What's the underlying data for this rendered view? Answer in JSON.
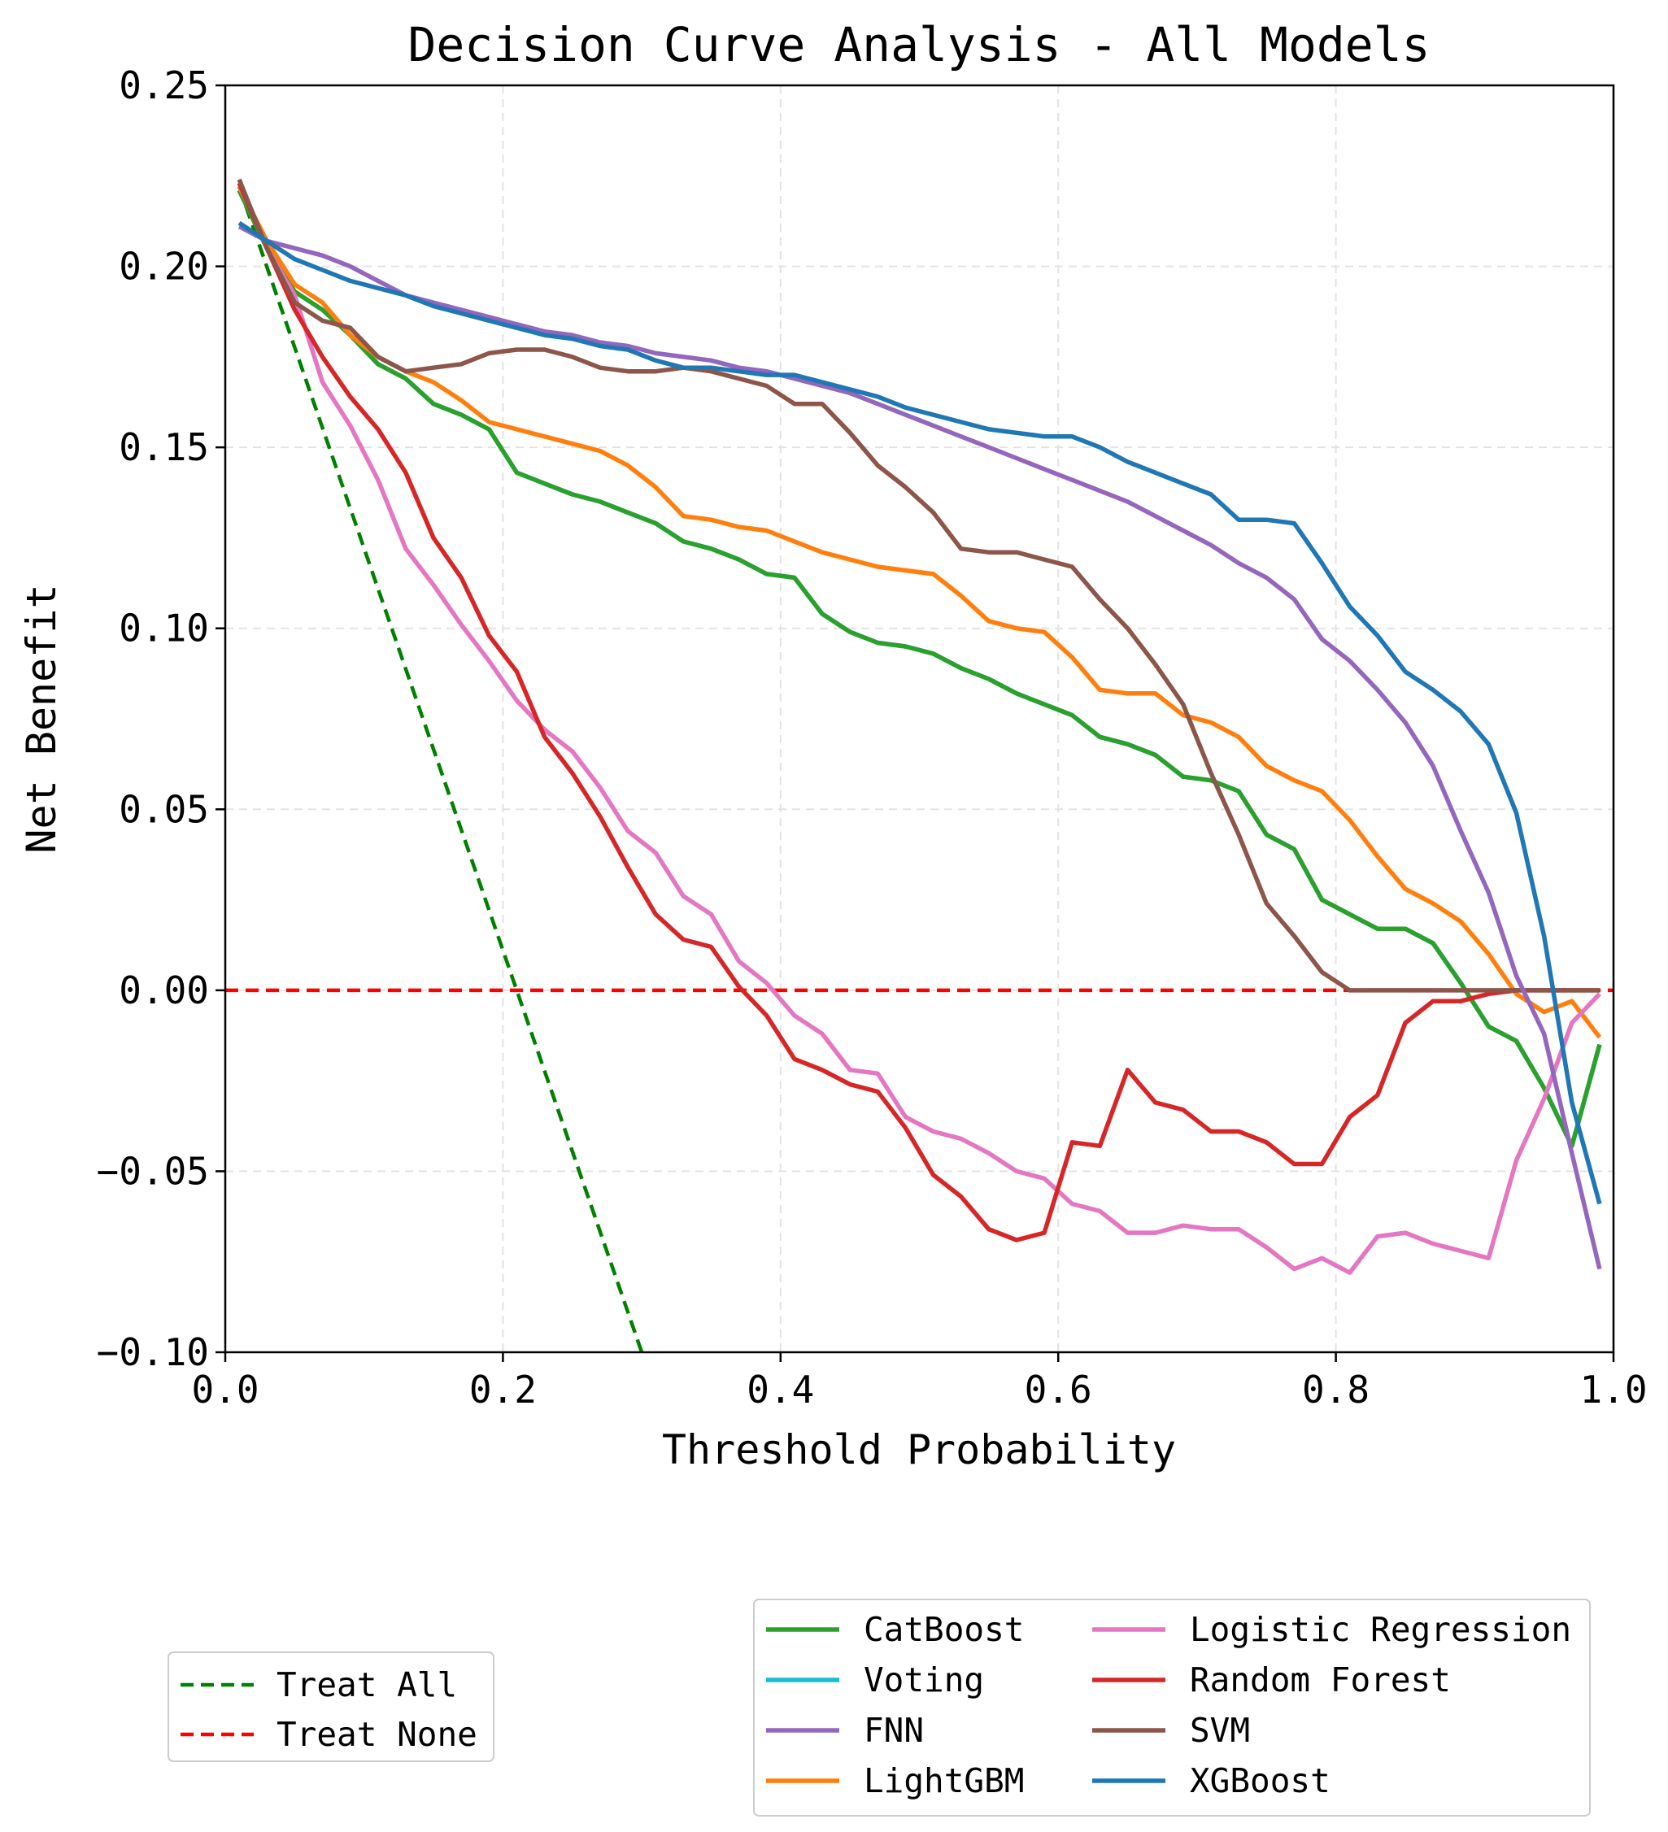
{
  "chart_data": {
    "type": "line",
    "title": "Decision Curve Analysis - All Models",
    "xlabel": "Threshold Probability",
    "ylabel": "Net Benefit",
    "xlim": [
      0.0,
      1.0
    ],
    "ylim": [
      -0.1,
      0.25
    ],
    "x_ticks": [
      "0.0",
      "0.2",
      "0.4",
      "0.6",
      "0.8",
      "1.0"
    ],
    "y_ticks": [
      "0.25",
      "0.20",
      "0.15",
      "0.10",
      "0.05",
      "0.00",
      "−0.05",
      "−0.10"
    ],
    "x_tick_values": [
      0.0,
      0.2,
      0.4,
      0.6,
      0.8,
      1.0
    ],
    "y_tick_values": [
      0.25,
      0.2,
      0.15,
      0.1,
      0.05,
      0.0,
      -0.05,
      -0.1
    ],
    "grid": true,
    "legend_reference": {
      "placement": "bottom-left",
      "entries": [
        "Treat All",
        "Treat None"
      ]
    },
    "legend_models": {
      "placement": "bottom-right",
      "columns": 2
    },
    "x": [
      0.01,
      0.03,
      0.05,
      0.07,
      0.09,
      0.11,
      0.13,
      0.15,
      0.17,
      0.19,
      0.21,
      0.23,
      0.25,
      0.27,
      0.29,
      0.31,
      0.33,
      0.35,
      0.37,
      0.39,
      0.41,
      0.43,
      0.45,
      0.47,
      0.49,
      0.51,
      0.53,
      0.55,
      0.57,
      0.59,
      0.61,
      0.63,
      0.65,
      0.67,
      0.69,
      0.71,
      0.73,
      0.75,
      0.77,
      0.79,
      0.81,
      0.83,
      0.85,
      0.87,
      0.89,
      0.91,
      0.93,
      0.95,
      0.97,
      0.99
    ],
    "series": [
      {
        "name": "Treat All",
        "color": "#008000",
        "dash": "dashed",
        "x": [
          0.01,
          0.3
        ],
        "values": [
          0.222,
          -0.1
        ]
      },
      {
        "name": "Treat None",
        "color": "#ff0000",
        "dash": "dashed",
        "x": [
          0.0,
          1.0
        ],
        "values": [
          0.0,
          0.0
        ]
      },
      {
        "name": "CatBoost",
        "color": "#2ca02c",
        "values": [
          0.221,
          0.205,
          0.193,
          0.188,
          0.181,
          0.173,
          0.169,
          0.162,
          0.159,
          0.155,
          0.143,
          0.14,
          0.137,
          0.135,
          0.132,
          0.129,
          0.124,
          0.122,
          0.119,
          0.115,
          0.114,
          0.104,
          0.099,
          0.096,
          0.095,
          0.093,
          0.089,
          0.086,
          0.082,
          0.079,
          0.076,
          0.07,
          0.068,
          0.065,
          0.059,
          0.058,
          0.055,
          0.043,
          0.039,
          0.025,
          0.021,
          0.017,
          0.017,
          0.013,
          0.002,
          -0.01,
          -0.014,
          -0.027,
          -0.043,
          -0.015
        ]
      },
      {
        "name": "Voting",
        "color": "#17becf",
        "values": [
          0.221,
          0.205,
          0.193,
          0.188,
          0.181,
          0.173,
          0.169,
          0.162,
          0.159,
          0.155,
          0.143,
          0.14,
          0.137,
          0.135,
          0.132,
          0.129,
          0.124,
          0.122,
          0.119,
          0.115,
          0.114,
          0.104,
          0.099,
          0.096,
          0.095,
          0.093,
          0.089,
          0.086,
          0.082,
          0.079,
          0.076,
          0.07,
          0.068,
          0.065,
          0.059,
          0.058,
          0.055,
          0.043,
          0.039,
          0.025,
          0.021,
          0.017,
          0.017,
          0.013,
          0.002,
          -0.01,
          -0.014,
          -0.027,
          -0.043,
          -0.015
        ]
      },
      {
        "name": "FNN",
        "color": "#9467bd",
        "values": [
          0.211,
          0.207,
          0.205,
          0.203,
          0.2,
          0.196,
          0.192,
          0.19,
          0.188,
          0.186,
          0.184,
          0.182,
          0.181,
          0.179,
          0.178,
          0.176,
          0.175,
          0.174,
          0.172,
          0.171,
          0.169,
          0.167,
          0.165,
          0.162,
          0.159,
          0.156,
          0.153,
          0.15,
          0.147,
          0.144,
          0.141,
          0.138,
          0.135,
          0.131,
          0.127,
          0.123,
          0.118,
          0.114,
          0.108,
          0.097,
          0.091,
          0.083,
          0.074,
          0.062,
          0.044,
          0.027,
          0.004,
          -0.012,
          -0.045,
          -0.077
        ]
      },
      {
        "name": "LightGBM",
        "color": "#ff7f0e",
        "values": [
          0.222,
          0.207,
          0.195,
          0.19,
          0.181,
          0.175,
          0.171,
          0.168,
          0.163,
          0.157,
          0.155,
          0.153,
          0.151,
          0.149,
          0.145,
          0.139,
          0.131,
          0.13,
          0.128,
          0.127,
          0.124,
          0.121,
          0.119,
          0.117,
          0.116,
          0.115,
          0.109,
          0.102,
          0.1,
          0.099,
          0.092,
          0.083,
          0.082,
          0.082,
          0.076,
          0.074,
          0.07,
          0.062,
          0.058,
          0.055,
          0.047,
          0.037,
          0.028,
          0.024,
          0.019,
          0.01,
          -0.001,
          -0.006,
          -0.003,
          -0.013
        ]
      },
      {
        "name": "Logistic Regression",
        "color": "#e377c2",
        "values": [
          0.223,
          0.205,
          0.192,
          0.168,
          0.156,
          0.141,
          0.122,
          0.112,
          0.101,
          0.091,
          0.08,
          0.072,
          0.066,
          0.056,
          0.044,
          0.038,
          0.026,
          0.021,
          0.008,
          0.002,
          -0.007,
          -0.012,
          -0.022,
          -0.023,
          -0.035,
          -0.039,
          -0.041,
          -0.045,
          -0.05,
          -0.052,
          -0.059,
          -0.061,
          -0.067,
          -0.067,
          -0.065,
          -0.066,
          -0.066,
          -0.071,
          -0.077,
          -0.074,
          -0.078,
          -0.068,
          -0.067,
          -0.07,
          -0.072,
          -0.074,
          -0.047,
          -0.03,
          -0.009,
          -0.001
        ]
      },
      {
        "name": "Random Forest",
        "color": "#d62728",
        "values": [
          0.223,
          0.205,
          0.188,
          0.175,
          0.164,
          0.155,
          0.143,
          0.125,
          0.114,
          0.098,
          0.088,
          0.07,
          0.06,
          0.048,
          0.034,
          0.021,
          0.014,
          0.012,
          0.001,
          -0.007,
          -0.019,
          -0.022,
          -0.026,
          -0.028,
          -0.038,
          -0.051,
          -0.057,
          -0.066,
          -0.069,
          -0.067,
          -0.042,
          -0.043,
          -0.022,
          -0.031,
          -0.033,
          -0.039,
          -0.039,
          -0.042,
          -0.048,
          -0.048,
          -0.035,
          -0.029,
          -0.009,
          -0.003,
          -0.003,
          -0.001,
          0.0,
          0.0,
          0.0,
          0.0
        ]
      },
      {
        "name": "SVM",
        "color": "#8c564b",
        "values": [
          0.224,
          0.205,
          0.19,
          0.185,
          0.183,
          0.175,
          0.171,
          0.172,
          0.173,
          0.176,
          0.177,
          0.177,
          0.175,
          0.172,
          0.171,
          0.171,
          0.172,
          0.171,
          0.169,
          0.167,
          0.162,
          0.162,
          0.154,
          0.145,
          0.139,
          0.132,
          0.122,
          0.121,
          0.121,
          0.119,
          0.117,
          0.108,
          0.1,
          0.09,
          0.079,
          0.06,
          0.043,
          0.024,
          0.015,
          0.005,
          0.0,
          0.0,
          0.0,
          0.0,
          0.0,
          0.0,
          0.0,
          0.0,
          0.0,
          0.0
        ]
      },
      {
        "name": "XGBoost",
        "color": "#1f77b4",
        "values": [
          0.212,
          0.207,
          0.202,
          0.199,
          0.196,
          0.194,
          0.192,
          0.189,
          0.187,
          0.185,
          0.183,
          0.181,
          0.18,
          0.178,
          0.177,
          0.174,
          0.172,
          0.172,
          0.171,
          0.17,
          0.17,
          0.168,
          0.166,
          0.164,
          0.161,
          0.159,
          0.157,
          0.155,
          0.154,
          0.153,
          0.153,
          0.15,
          0.146,
          0.143,
          0.14,
          0.137,
          0.13,
          0.13,
          0.129,
          0.118,
          0.106,
          0.098,
          0.088,
          0.083,
          0.077,
          0.068,
          0.049,
          0.015,
          -0.031,
          -0.059
        ]
      }
    ]
  }
}
